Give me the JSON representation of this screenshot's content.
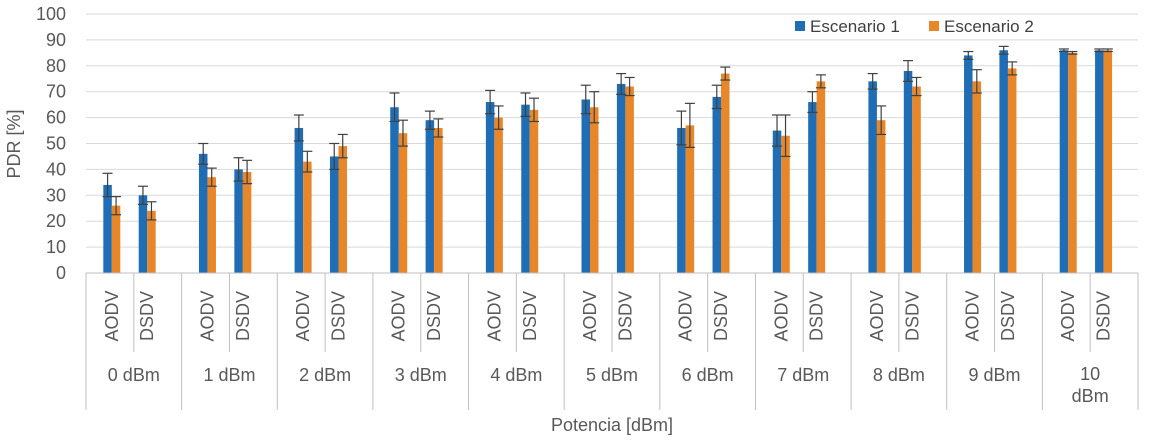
{
  "colors": {
    "series1": "#1F6EB5",
    "series2": "#E8862A",
    "grid": "#D9D9D9",
    "axis": "#BFBFBF",
    "errorbar": "#404040",
    "text": "#595959"
  },
  "chart_data": {
    "type": "bar",
    "title": "",
    "ylabel": "PDR [%]",
    "xlabel": "Potencia [dBm]",
    "ylim": [
      0,
      100
    ],
    "yticks": [
      0,
      10,
      20,
      30,
      40,
      50,
      60,
      70,
      80,
      90,
      100
    ],
    "grid": true,
    "legend_position": "top-right",
    "groups": [
      "0 dBm",
      "1 dBm",
      "2 dBm",
      "3 dBm",
      "4 dBm",
      "5 dBm",
      "6 dBm",
      "7 dBm",
      "8 dBm",
      "9 dBm",
      "10 dBm"
    ],
    "categories": [
      "AODV",
      "DSDV"
    ],
    "series": [
      {
        "name": "Escenario 1",
        "values": [
          [
            34,
            30
          ],
          [
            46,
            40
          ],
          [
            56,
            45
          ],
          [
            64,
            59
          ],
          [
            66,
            65
          ],
          [
            67,
            73
          ],
          [
            56,
            68
          ],
          [
            55,
            66
          ],
          [
            74,
            78
          ],
          [
            84,
            86
          ],
          [
            86,
            86
          ]
        ],
        "errors": [
          [
            4.5,
            3.5
          ],
          [
            4,
            4.5
          ],
          [
            5,
            5
          ],
          [
            5.5,
            3.5
          ],
          [
            4.5,
            4.5
          ],
          [
            5.5,
            4
          ],
          [
            6.5,
            4.5
          ],
          [
            6,
            4
          ],
          [
            3,
            4
          ],
          [
            1.5,
            1.5
          ],
          [
            0.5,
            0.5
          ]
        ]
      },
      {
        "name": "Escenario 2",
        "values": [
          [
            26,
            24
          ],
          [
            37,
            39
          ],
          [
            43,
            49
          ],
          [
            54,
            56
          ],
          [
            60,
            63
          ],
          [
            64,
            72
          ],
          [
            57,
            77
          ],
          [
            53,
            74
          ],
          [
            59,
            72
          ],
          [
            74,
            79
          ],
          [
            85,
            86
          ]
        ],
        "errors": [
          [
            3.5,
            3.5
          ],
          [
            3.5,
            4.5
          ],
          [
            4,
            4.5
          ],
          [
            5,
            3.5
          ],
          [
            4.5,
            4.5
          ],
          [
            6,
            3.5
          ],
          [
            8.5,
            2.5
          ],
          [
            8,
            2.5
          ],
          [
            5.5,
            3.5
          ],
          [
            4.5,
            2.5
          ],
          [
            0.5,
            0.5
          ]
        ]
      }
    ]
  }
}
